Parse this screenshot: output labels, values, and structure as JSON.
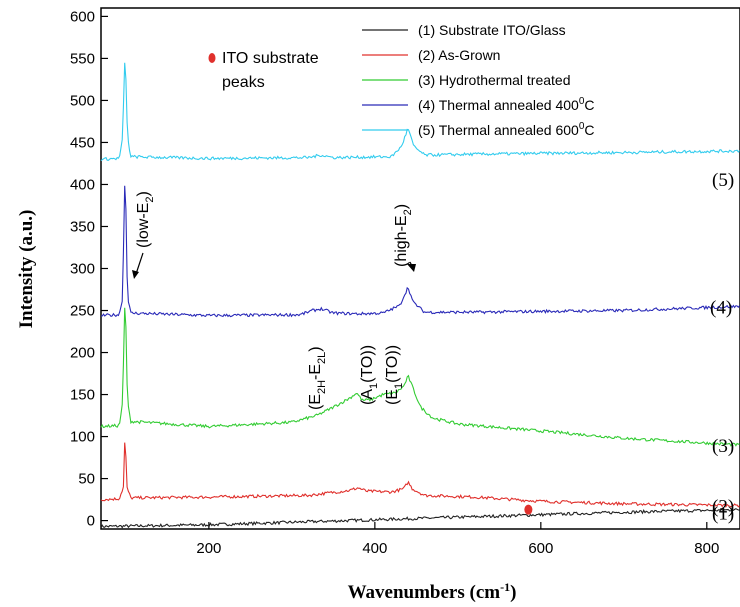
{
  "chart_data": {
    "type": "line",
    "xlabel": "Wavenumbers (cm",
    "xlabel_sup": "-1",
    "xlabel_end": ")",
    "ylabel": "Intensity (a.u.)",
    "xlim": [
      70,
      840
    ],
    "ylim": [
      -10,
      610
    ],
    "xticks": [
      200,
      400,
      600,
      800
    ],
    "yticks": [
      0,
      50,
      100,
      150,
      200,
      250,
      300,
      350,
      400,
      450,
      500,
      550,
      600
    ],
    "legend_position": "top-right",
    "series": [
      {
        "name": "(1) Substrate ITO/Glass",
        "color": "#222222",
        "curve_label": "(1)",
        "points": [
          [
            70,
            -7
          ],
          [
            200,
            -5
          ],
          [
            300,
            -2
          ],
          [
            400,
            1
          ],
          [
            500,
            4
          ],
          [
            600,
            7
          ],
          [
            700,
            10
          ],
          [
            840,
            13
          ]
        ]
      },
      {
        "name": "(2) As-Grown",
        "color": "#e0302c",
        "curve_label": "(2)",
        "points": [
          [
            70,
            25
          ],
          [
            92,
            26
          ],
          [
            97,
            40
          ],
          [
            99,
            110
          ],
          [
            101,
            40
          ],
          [
            106,
            27
          ],
          [
            200,
            28
          ],
          [
            320,
            30
          ],
          [
            345,
            33
          ],
          [
            370,
            36
          ],
          [
            380,
            39
          ],
          [
            390,
            35
          ],
          [
            420,
            34
          ],
          [
            435,
            38
          ],
          [
            440,
            46
          ],
          [
            445,
            38
          ],
          [
            460,
            30
          ],
          [
            520,
            28
          ],
          [
            600,
            23
          ],
          [
            700,
            20
          ],
          [
            840,
            18
          ]
        ]
      },
      {
        "name": "(3) Hydrothermal treated",
        "color": "#33cc33",
        "curve_label": "(3)",
        "points": [
          [
            70,
            112
          ],
          [
            92,
            113
          ],
          [
            96,
            140
          ],
          [
            99,
            275
          ],
          [
            102,
            140
          ],
          [
            106,
            118
          ],
          [
            200,
            112
          ],
          [
            300,
            117
          ],
          [
            330,
            125
          ],
          [
            350,
            135
          ],
          [
            370,
            146
          ],
          [
            378,
            152
          ],
          [
            385,
            143
          ],
          [
            395,
            144
          ],
          [
            410,
            150
          ],
          [
            425,
            152
          ],
          [
            435,
            160
          ],
          [
            440,
            172
          ],
          [
            445,
            160
          ],
          [
            455,
            135
          ],
          [
            470,
            122
          ],
          [
            500,
            115
          ],
          [
            560,
            110
          ],
          [
            620,
            105
          ],
          [
            700,
            98
          ],
          [
            840,
            90
          ]
        ]
      },
      {
        "name": "(4) Thermal annealed 400",
        "name_sup": "0",
        "name_end": "C",
        "color": "#2a2ab8",
        "curve_label": "(4)",
        "points": [
          [
            70,
            244
          ],
          [
            92,
            245
          ],
          [
            96,
            265
          ],
          [
            99,
            425
          ],
          [
            102,
            265
          ],
          [
            106,
            247
          ],
          [
            200,
            244
          ],
          [
            310,
            245
          ],
          [
            325,
            250
          ],
          [
            335,
            252
          ],
          [
            350,
            247
          ],
          [
            380,
            246
          ],
          [
            410,
            247
          ],
          [
            430,
            256
          ],
          [
            440,
            278
          ],
          [
            446,
            260
          ],
          [
            460,
            248
          ],
          [
            520,
            248
          ],
          [
            600,
            249
          ],
          [
            700,
            250
          ],
          [
            840,
            255
          ]
        ]
      },
      {
        "name": "(5) Thermal annealed 600",
        "name_sup": "0",
        "name_end": "C",
        "color": "#33ccee",
        "curve_label": "(5)",
        "points": [
          [
            70,
            430
          ],
          [
            92,
            431
          ],
          [
            96,
            455
          ],
          [
            99,
            562
          ],
          [
            102,
            455
          ],
          [
            106,
            433
          ],
          [
            200,
            431
          ],
          [
            320,
            432
          ],
          [
            335,
            435
          ],
          [
            350,
            432
          ],
          [
            420,
            433
          ],
          [
            432,
            445
          ],
          [
            440,
            467
          ],
          [
            447,
            445
          ],
          [
            460,
            435
          ],
          [
            520,
            436
          ],
          [
            600,
            437
          ],
          [
            700,
            438
          ],
          [
            840,
            440
          ]
        ]
      }
    ],
    "annotations": {
      "ito_label_1": "ITO substrate",
      "ito_label_2": "peaks",
      "low_e2": "(low-E",
      "low_e2_sub": "2",
      "low_e2_end": ")",
      "high_e2": "(high-E",
      "high_e2_sub": "2",
      "high_e2_end": ")",
      "e2h_a": "(E",
      "e2h_b": "2H",
      "e2h_c": "-E",
      "e2h_d": "2L",
      "e2h_e": ")",
      "a1_a": "(A",
      "a1_b": "1",
      "a1_c": "(TO))",
      "e1_a": "(E",
      "e1_b": "1",
      "e1_c": "(TO))"
    },
    "marker": {
      "x": 585,
      "y": 13,
      "color": "#e0302c"
    }
  }
}
